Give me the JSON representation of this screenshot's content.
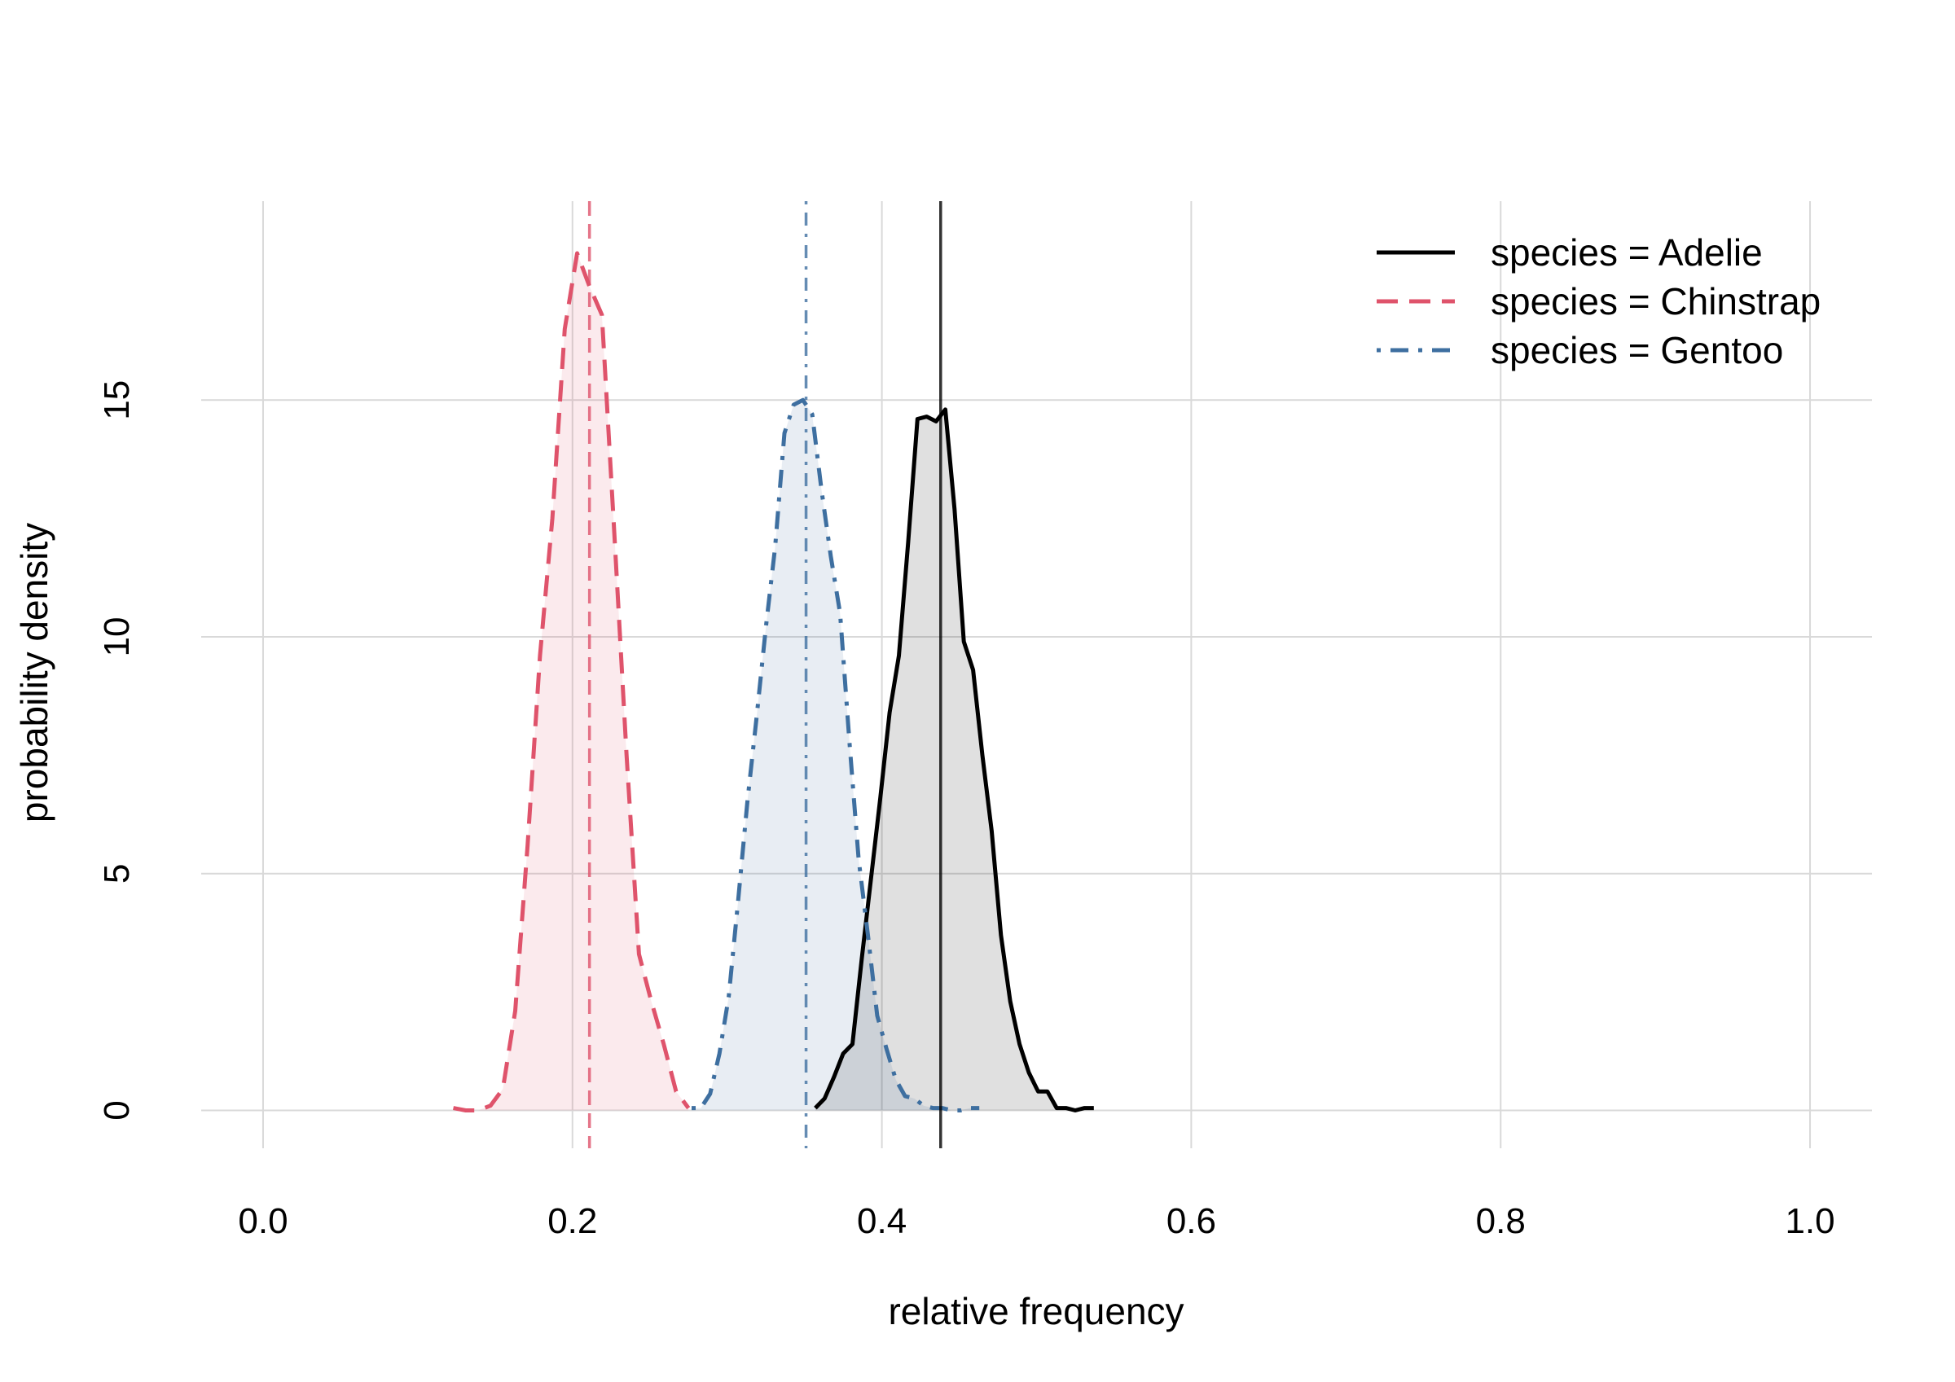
{
  "chart_data": {
    "type": "area",
    "xlabel": "relative frequency",
    "ylabel": "probability density",
    "xlim": [
      -0.04,
      1.04
    ],
    "ylim": [
      -0.8,
      19.2
    ],
    "x_ticks": [
      "0.0",
      "0.2",
      "0.4",
      "0.6",
      "0.8",
      "1.0"
    ],
    "y_ticks": [
      "0",
      "5",
      "10",
      "15"
    ],
    "grid": true,
    "legend_position": "top-right",
    "series": [
      {
        "name": "species = Adelie",
        "color": "#000000",
        "fill": "#e0e0e0",
        "line_style": "solid",
        "mean": 0.438,
        "x": [
          0.357,
          0.363,
          0.369,
          0.375,
          0.381,
          0.387,
          0.393,
          0.399,
          0.405,
          0.411,
          0.417,
          0.423,
          0.429,
          0.435,
          0.441,
          0.447,
          0.453,
          0.459,
          0.465,
          0.471,
          0.477,
          0.483,
          0.489,
          0.495,
          0.501,
          0.507,
          0.513,
          0.519,
          0.525,
          0.531,
          0.537
        ],
        "y": [
          0.05,
          0.25,
          0.7,
          1.2,
          1.4,
          3.2,
          4.9,
          6.6,
          8.4,
          9.6,
          12.0,
          14.6,
          14.65,
          14.55,
          14.8,
          12.7,
          9.9,
          9.3,
          7.5,
          5.9,
          3.7,
          2.3,
          1.4,
          0.8,
          0.4,
          0.4,
          0.05,
          0.05,
          0.0,
          0.05,
          0.05
        ]
      },
      {
        "name": "species = Chinstrap",
        "color": "#df536b",
        "fill": "#fae5e8",
        "line_style": "dashed",
        "mean": 0.211,
        "x": [
          0.123,
          0.131,
          0.139,
          0.147,
          0.155,
          0.163,
          0.171,
          0.179,
          0.187,
          0.195,
          0.203,
          0.211,
          0.219,
          0.227,
          0.235,
          0.243,
          0.251,
          0.259,
          0.267,
          0.275
        ],
        "y": [
          0.05,
          0.0,
          0.0,
          0.1,
          0.45,
          2.1,
          5.6,
          9.6,
          12.5,
          16.5,
          18.1,
          17.4,
          16.8,
          12.2,
          7.5,
          3.3,
          2.3,
          1.4,
          0.4,
          0.05
        ]
      },
      {
        "name": "species = Gentoo",
        "color": "#3e6fa0",
        "fill": "#e3eaf4",
        "line_style": "dotdash",
        "mean": 0.351,
        "x": [
          0.277,
          0.283,
          0.289,
          0.295,
          0.301,
          0.307,
          0.313,
          0.319,
          0.325,
          0.331,
          0.337,
          0.343,
          0.349,
          0.355,
          0.361,
          0.367,
          0.373,
          0.379,
          0.385,
          0.391,
          0.397,
          0.403,
          0.409,
          0.415,
          0.421,
          0.427,
          0.433,
          0.439,
          0.445,
          0.451,
          0.457,
          0.463
        ],
        "y": [
          0.05,
          0.05,
          0.35,
          1.2,
          2.4,
          4.4,
          6.5,
          8.3,
          10.2,
          11.9,
          14.3,
          14.9,
          15.0,
          14.7,
          13.1,
          11.7,
          10.5,
          7.8,
          5.3,
          3.7,
          2.0,
          1.3,
          0.65,
          0.3,
          0.25,
          0.1,
          0.05,
          0.05,
          0.0,
          0.0,
          0.05,
          0.05
        ]
      }
    ]
  }
}
